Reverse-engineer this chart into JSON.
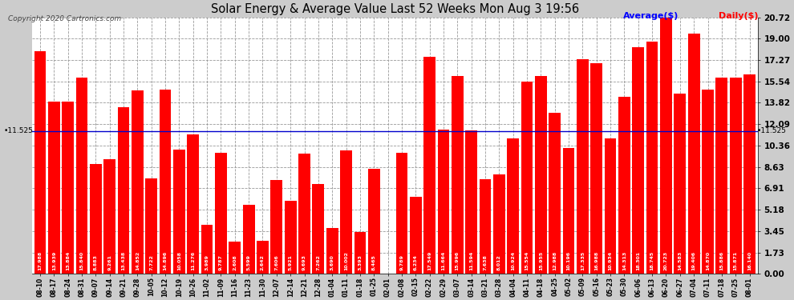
{
  "title": "Solar Energy & Average Value Last 52 Weeks Mon Aug 3 19:56",
  "copyright": "Copyright 2020 Cartronics.com",
  "average_label": "Average($)",
  "daily_label": "Daily($)",
  "average_value": 11.525,
  "bar_color": "#ff0000",
  "average_line_color": "#0000cc",
  "background_color": "#cccccc",
  "plot_bg_color": "#ffffff",
  "grid_color": "#999999",
  "ylim": [
    0,
    20.72
  ],
  "yticks": [
    0.0,
    1.73,
    3.45,
    5.18,
    6.91,
    8.63,
    10.36,
    12.09,
    13.82,
    15.54,
    17.27,
    19.0,
    20.72
  ],
  "categories": [
    "08-10",
    "08-17",
    "08-24",
    "08-31",
    "09-07",
    "09-14",
    "09-21",
    "09-28",
    "10-05",
    "10-12",
    "10-19",
    "10-26",
    "11-02",
    "11-09",
    "11-16",
    "11-23",
    "11-30",
    "12-07",
    "12-14",
    "12-21",
    "12-28",
    "01-04",
    "01-11",
    "01-18",
    "01-25",
    "02-01",
    "02-08",
    "02-15",
    "02-22",
    "02-29",
    "03-07",
    "03-14",
    "03-21",
    "03-28",
    "04-04",
    "04-11",
    "04-18",
    "04-25",
    "05-02",
    "05-09",
    "05-16",
    "05-23",
    "05-30",
    "06-06",
    "06-13",
    "06-20",
    "06-27",
    "07-04",
    "07-11",
    "07-18",
    "07-25",
    "08-01"
  ],
  "values": [
    17.988,
    13.939,
    13.884,
    15.84,
    8.883,
    9.261,
    13.438,
    14.852,
    7.722,
    14.896,
    10.058,
    11.276,
    3.989,
    9.787,
    2.608,
    5.599,
    2.642,
    7.606,
    5.921,
    9.693,
    7.262,
    3.69,
    10.002,
    3.393,
    8.465,
    0.008,
    9.789,
    6.234,
    17.549,
    11.664,
    15.996,
    11.594,
    7.638,
    8.012,
    10.924,
    15.554,
    15.955,
    12.988,
    10.196,
    17.335,
    16.988,
    10.934,
    14.313,
    18.301,
    18.745,
    20.723,
    14.583,
    19.406,
    14.87,
    15.886,
    15.871,
    16.14
  ],
  "label_fontsize": 4.5,
  "xlabel_fontsize": 5.5,
  "ylabel_fontsize": 7.5,
  "title_fontsize": 10.5,
  "copyright_fontsize": 6.5,
  "legend_fontsize": 8.0
}
